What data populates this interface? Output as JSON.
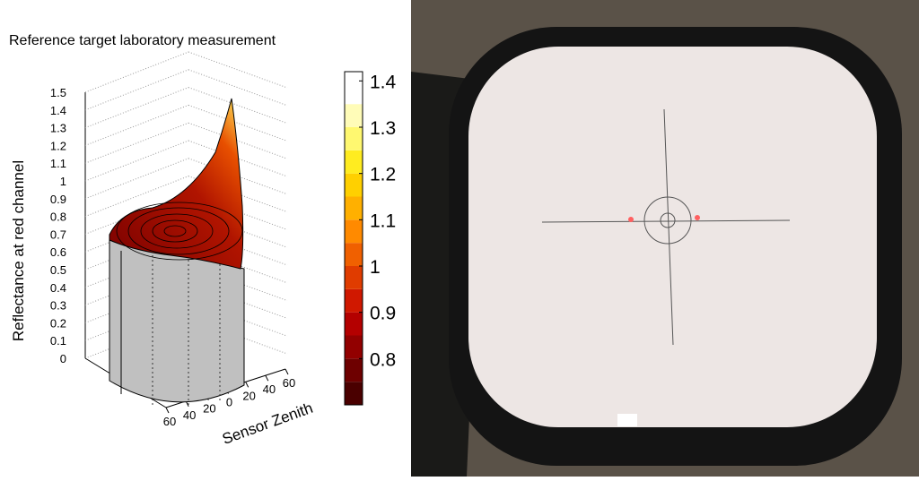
{
  "chart_data": {
    "type": "surface3d",
    "title": "Reference target laboratory measurement",
    "zlabel": "Reflectance at red channel",
    "xlabel": "Sensor Zenith",
    "zlim": [
      0,
      1.5
    ],
    "zticks": [
      0,
      0.1,
      0.2,
      0.3,
      0.4,
      0.5,
      0.6,
      0.7,
      0.8,
      0.9,
      1,
      1.1,
      1.2,
      1.3,
      1.4,
      1.5
    ],
    "xlim": [
      -60,
      60
    ],
    "xticks": [
      {
        "value": -60,
        "label": "60"
      },
      {
        "value": -40,
        "label": "40"
      },
      {
        "value": -20,
        "label": "20"
      },
      0,
      20,
      40,
      60
    ],
    "colorbar": {
      "lim": [
        0.7,
        1.42
      ],
      "ticks": [
        0.8,
        0.9,
        1,
        1.1,
        1.2,
        1.3,
        1.4
      ],
      "levels": [
        0.7,
        0.75,
        0.8,
        0.85,
        0.9,
        0.95,
        1,
        1.05,
        1.1,
        1.15,
        1.2,
        1.25,
        1.3,
        1.35,
        1.42
      ],
      "colors": [
        "#4a0000",
        "#6e0000",
        "#920000",
        "#b40000",
        "#d01800",
        "#e03c00",
        "#f06000",
        "#ff8a00",
        "#ffb000",
        "#ffd000",
        "#ffec20",
        "#fff870",
        "#fffcb8",
        "#ffffff"
      ]
    }
  }
}
